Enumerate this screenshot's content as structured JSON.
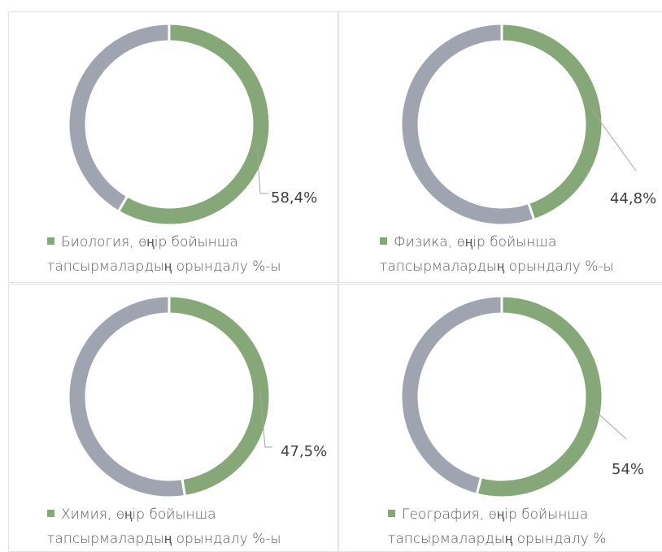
{
  "chart_data": [
    {
      "type": "donut",
      "categories": [
        "Биология, өңір бойынша тапсырмалардың орындалу %-ы",
        null
      ],
      "values": [
        58.4,
        41.6
      ],
      "value_labels": [
        "58,4%",
        null
      ],
      "colors": [
        "#86a878",
        "#a0a4b0"
      ]
    },
    {
      "type": "donut",
      "categories": [
        "Физика, өңір бойынша тапсырмалардың орындалу %-ы",
        null
      ],
      "values": [
        44.8,
        55.2
      ],
      "value_labels": [
        "44,8%",
        null
      ],
      "colors": [
        "#86a878",
        "#a0a4b0"
      ]
    },
    {
      "type": "donut",
      "categories": [
        "Химия, өңір бойынша тапсырмалардың орындалу %-ы",
        null
      ],
      "values": [
        47.5,
        52.5
      ],
      "value_labels": [
        "47,5%",
        null
      ],
      "colors": [
        "#86a878",
        "#a0a4b0"
      ]
    },
    {
      "type": "donut",
      "categories": [
        "География, өңір бойынша тапсырмалардың орындалу %",
        null
      ],
      "values": [
        54,
        46
      ],
      "value_labels": [
        "54%",
        null
      ],
      "colors": [
        "#86a878",
        "#a0a4b0"
      ]
    }
  ]
}
